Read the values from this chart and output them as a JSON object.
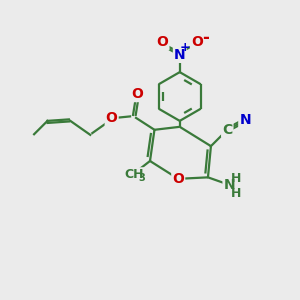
{
  "bg_color": "#ebebeb",
  "bond_color": "#3a7a3a",
  "bond_width": 1.6,
  "atom_colors": {
    "O": "#cc0000",
    "N": "#0000cc",
    "C": "#3a7a3a"
  },
  "font_size_atoms": 10,
  "font_size_small": 8,
  "xlim": [
    0,
    10
  ],
  "ylim": [
    0,
    10
  ]
}
